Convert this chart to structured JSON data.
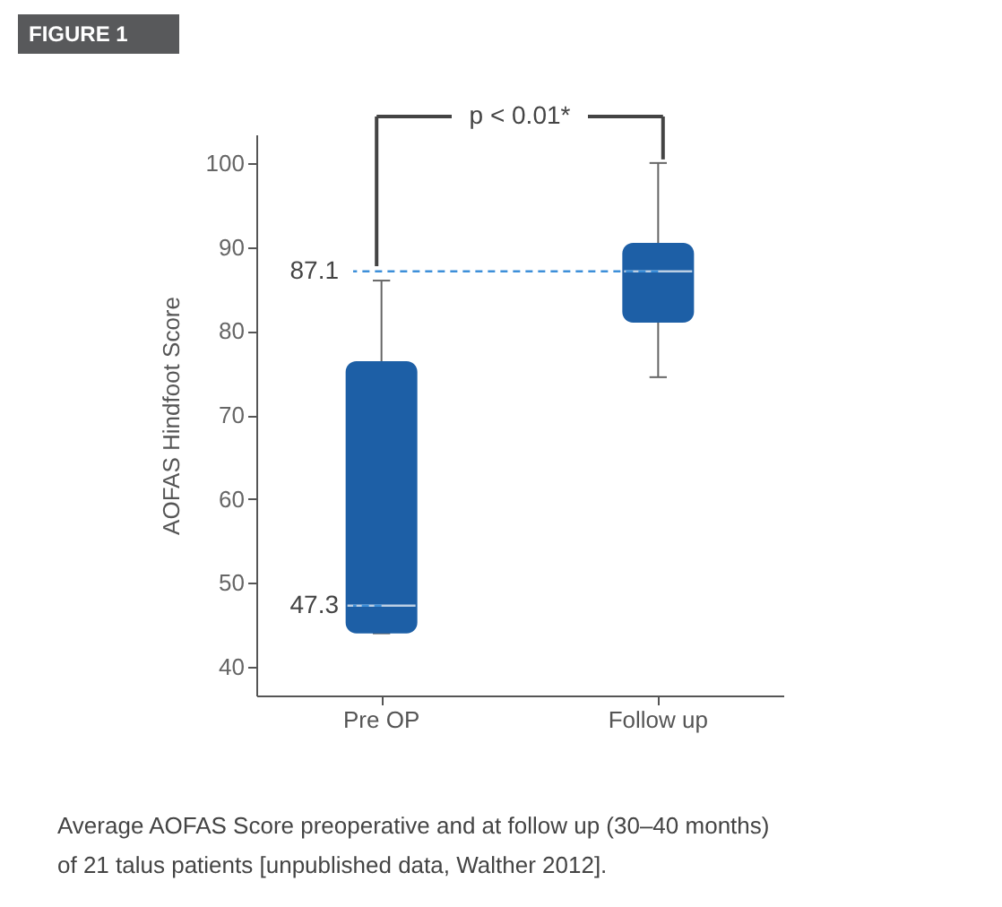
{
  "chart_data": {
    "type": "box",
    "title": "FIGURE 1",
    "ylabel": "AOFAS Hindfoot Score",
    "categories": [
      "Pre OP",
      "Follow up"
    ],
    "boxes": [
      {
        "low": 44,
        "q1": 44,
        "median": 47.3,
        "q3": 76.4,
        "high": 86
      },
      {
        "low": 74.5,
        "q1": 81,
        "median": 87.1,
        "q3": 90.5,
        "high": 100
      }
    ],
    "color": "#1d5fa6",
    "ylim": [
      36.6,
      103.4
    ],
    "yticks": [
      40,
      50,
      60,
      70,
      80,
      90,
      100
    ],
    "grid": false,
    "annotations": [
      "p < 0.01*",
      {
        "text": "87.1",
        "x": "Follow up",
        "y": 87.1
      },
      {
        "text": "47.3",
        "x": "Pre OP",
        "y": 47.3
      },
      "Average AOFAS Score preoperative and at follow up (30–40 months) of 21 talus patients [unpublished data, Walther 2012]."
    ]
  }
}
